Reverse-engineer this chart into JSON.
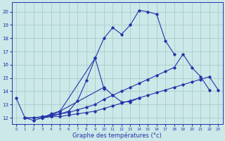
{
  "xlabel": "Graphe des températures (°c)",
  "background_color": "#cce8e8",
  "grid_color": "#aacccc",
  "line_color": "#2233aa",
  "xlim": [
    -0.5,
    23.5
  ],
  "ylim": [
    11.5,
    20.7
  ],
  "yticks": [
    12,
    13,
    14,
    15,
    16,
    17,
    18,
    19,
    20
  ],
  "xticks": [
    0,
    1,
    2,
    3,
    4,
    5,
    6,
    7,
    8,
    9,
    10,
    11,
    12,
    13,
    14,
    15,
    16,
    17,
    18,
    19,
    20,
    21,
    22,
    23
  ],
  "line1_x": [
    0,
    1,
    2,
    3,
    4,
    5,
    9,
    10,
    11,
    12,
    13,
    14,
    15,
    16,
    17,
    18
  ],
  "line1_y": [
    13.5,
    12.0,
    11.8,
    12.0,
    12.3,
    12.5,
    16.5,
    18.0,
    18.8,
    18.3,
    19.0,
    20.1,
    20.0,
    19.8,
    17.8,
    16.8
  ],
  "line2_x": [
    3,
    4,
    5,
    10,
    11,
    12,
    13,
    14
  ],
  "line2_y": [
    12.0,
    12.2,
    12.5,
    14.3,
    13.7,
    13.2,
    13.2,
    13.5
  ],
  "line3_x": [
    3,
    4,
    5,
    6,
    7,
    8,
    9,
    10
  ],
  "line3_y": [
    12.0,
    12.1,
    12.3,
    12.5,
    13.3,
    14.8,
    16.5,
    14.2
  ],
  "line4_x": [
    1,
    2,
    3,
    4,
    5,
    6,
    7,
    8,
    9,
    10,
    11,
    12,
    13,
    14,
    15,
    16,
    17,
    18,
    19,
    20,
    21,
    22
  ],
  "line4_y": [
    12.0,
    12.0,
    12.1,
    12.2,
    12.3,
    12.4,
    12.6,
    12.8,
    13.0,
    13.4,
    13.7,
    14.0,
    14.3,
    14.6,
    14.9,
    15.2,
    15.5,
    15.8,
    16.8,
    15.8,
    15.1,
    14.1
  ],
  "line5_x": [
    1,
    2,
    3,
    4,
    5,
    6,
    7,
    8,
    9,
    10,
    11,
    12,
    13,
    14,
    15,
    16,
    17,
    18,
    19,
    20,
    21,
    22,
    23
  ],
  "line5_y": [
    12.0,
    12.0,
    12.0,
    12.1,
    12.1,
    12.2,
    12.3,
    12.4,
    12.5,
    12.7,
    12.9,
    13.1,
    13.3,
    13.5,
    13.7,
    13.9,
    14.1,
    14.3,
    14.5,
    14.7,
    14.9,
    15.1,
    14.1
  ]
}
